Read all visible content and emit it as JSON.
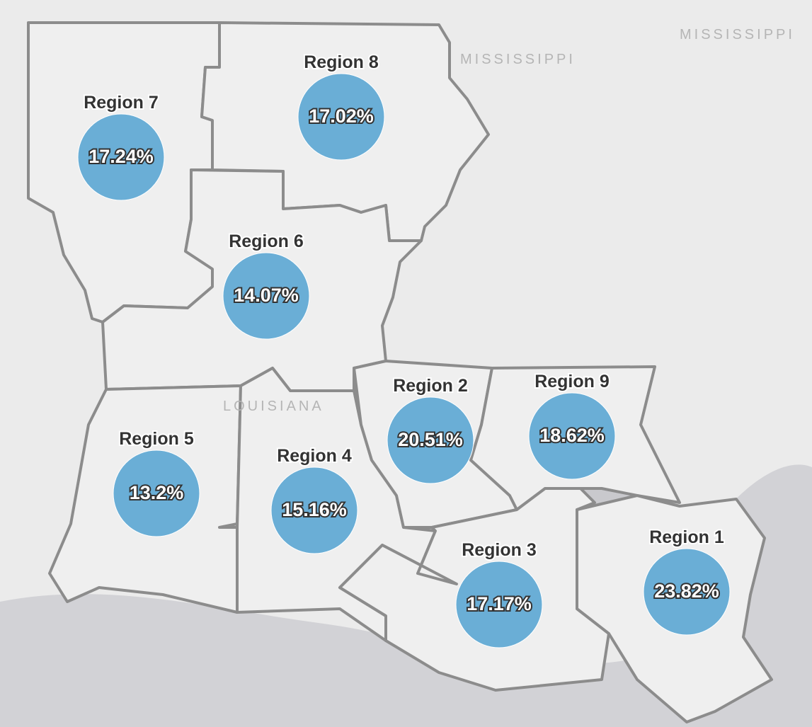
{
  "map_labels": [
    "MISSISSIPPI",
    "MISSISSIPPI",
    "LOUISIANA"
  ],
  "regions": [
    {
      "name": "Region 7",
      "value": "17.24%"
    },
    {
      "name": "Region 8",
      "value": "17.02%"
    },
    {
      "name": "Region 6",
      "value": "14.07%"
    },
    {
      "name": "Region 5",
      "value": "13.2%"
    },
    {
      "name": "Region 4",
      "value": "15.16%"
    },
    {
      "name": "Region 2",
      "value": "20.51%"
    },
    {
      "name": "Region 9",
      "value": "18.62%"
    },
    {
      "name": "Region 3",
      "value": "17.17%"
    },
    {
      "name": "Region 1",
      "value": "23.82%"
    }
  ]
}
